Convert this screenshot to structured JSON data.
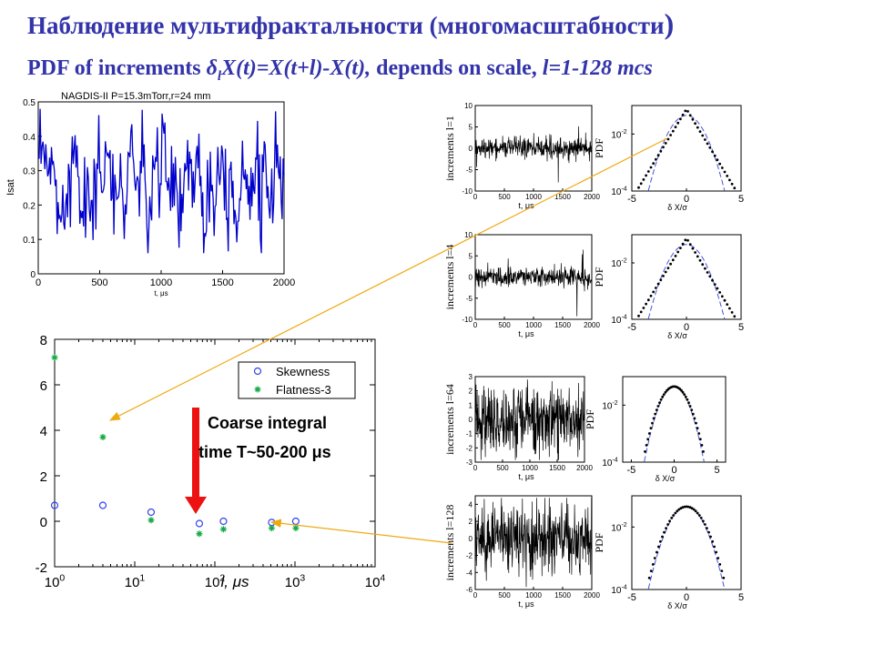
{
  "title": {
    "line1": "Наблюдение мультифрактальности (многомасштабности",
    "line1_paren": ")",
    "line2_pre": "PDF of increments ",
    "line2_delta": "δ",
    "line2_sub": "l",
    "line2_mid": "X(t)=X(t+l)-X(t),",
    "line2_post": " depends on scale, ",
    "line2_tail": "l=1-128 mcs"
  },
  "annotation": {
    "line1": "Coarse integral",
    "line2": "time  T~50-200 μs"
  },
  "colors": {
    "title": "#3333aa",
    "signal": "#0000cc",
    "skew": "#3344ee",
    "flat": "#11aa44",
    "arrow_red": "#ee1111",
    "arrow_orange": "#eeaa11",
    "pdf_fit": "#4455dd"
  },
  "chart_data": [
    {
      "id": "signal",
      "type": "line",
      "title": "NAGDIS-II P=15.3mTorr,r=24 mm",
      "xlabel": "t, μs",
      "ylabel": "Isat",
      "xlim": [
        0,
        2000
      ],
      "ylim": [
        0,
        0.5
      ],
      "xticks": [
        "0",
        "500",
        "1000",
        "1500",
        "2000"
      ],
      "yticks": [
        "0",
        "0.1",
        "0.2",
        "0.3",
        "0.4",
        "0.5"
      ],
      "series": [
        {
          "color": "#0000cc",
          "description": "fluctuating ion saturation current, mostly 0.1-0.45"
        }
      ]
    },
    {
      "id": "moments",
      "type": "scatter",
      "xscale": "log",
      "xlabel": "l, μs",
      "xlim": [
        1,
        10000
      ],
      "ylim": [
        -2,
        8
      ],
      "xticks": [
        "10^0",
        "10^1",
        "10^2",
        "10^3",
        "10^4"
      ],
      "yticks": [
        "-2",
        "0",
        "2",
        "4",
        "6",
        "8"
      ],
      "legend": "top-right",
      "series": [
        {
          "name": "Skewness",
          "marker": "circle",
          "x": [
            1,
            4,
            16,
            64,
            128,
            512,
            1024
          ],
          "y": [
            0.7,
            0.7,
            0.4,
            -0.1,
            0.0,
            -0.05,
            0.0
          ]
        },
        {
          "name": "Flatness-3",
          "marker": "star",
          "x": [
            1,
            4,
            16,
            64,
            128,
            512,
            1024
          ],
          "y": [
            7.2,
            3.7,
            0.05,
            -0.55,
            -0.35,
            -0.3,
            -0.3
          ]
        }
      ]
    },
    {
      "id": "increments",
      "type": "line",
      "xlim": [
        0,
        2000
      ],
      "xticks": [
        "0",
        "500",
        "1000",
        "1500",
        "2000"
      ],
      "xlabel": "t, μs",
      "panels": [
        {
          "label": "increments l=1",
          "yticks": [
            "-10",
            "-5",
            "0",
            "5",
            "10"
          ],
          "ylim": [
            -10,
            10
          ]
        },
        {
          "label": "increments l=4",
          "yticks": [
            "-10",
            "-5",
            "0",
            "5",
            "10"
          ],
          "ylim": [
            -10,
            10
          ]
        },
        {
          "label": "increments l=64",
          "yticks": [
            "-3",
            "-2",
            "-1",
            "0",
            "1",
            "2",
            "3"
          ],
          "ylim": [
            -3,
            3
          ]
        },
        {
          "label": "increments l=128",
          "yticks": [
            "-6",
            "-4",
            "-2",
            "0",
            "2",
            "4"
          ],
          "ylim": [
            -6,
            5
          ]
        }
      ]
    },
    {
      "id": "pdfs",
      "type": "scatter",
      "yscale": "log",
      "ylabel": "PDF",
      "xlabel": "δ X/σ",
      "ylim": [
        0.0001,
        0.1
      ],
      "yticks": [
        "10^-2",
        "10^-4"
      ],
      "panels": [
        {
          "xticks": [
            "-5",
            "0",
            "5"
          ],
          "xlim": [
            -5,
            5
          ],
          "shape": "laplace"
        },
        {
          "xticks": [
            "-5",
            "0",
            "5"
          ],
          "xlim": [
            -5,
            5
          ],
          "shape": "laplace"
        },
        {
          "xticks": [
            "-5",
            "0",
            "5"
          ],
          "xlim": [
            -6,
            6
          ],
          "shape": "gauss"
        },
        {
          "xticks": [
            "-5",
            "0",
            "5"
          ],
          "xlim": [
            -5,
            5
          ],
          "shape": "gauss"
        }
      ]
    }
  ]
}
